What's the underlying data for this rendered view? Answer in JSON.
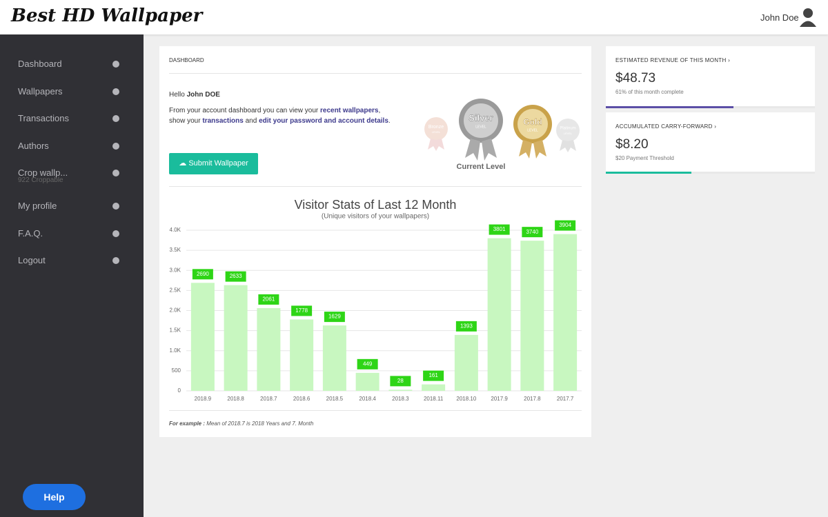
{
  "header": {
    "logo": "Best HD Wallpaper",
    "user": "John Doe"
  },
  "sidebar": {
    "items": [
      {
        "label": "Dashboard"
      },
      {
        "label": "Wallpapers"
      },
      {
        "label": "Transactions"
      },
      {
        "label": "Authors"
      },
      {
        "label": "Crop wallp...",
        "sublabel": "922 Croppable"
      },
      {
        "label": "My profile"
      },
      {
        "label": "F.A.Q."
      },
      {
        "label": "Logout"
      }
    ],
    "help": "Help"
  },
  "panel": {
    "title": "DASHBOARD",
    "greeting": "Hello",
    "name": "John DOE",
    "intro": [
      "From your account dashboard you can view your ",
      "recent wallpapers",
      ", show your ",
      "transactions",
      " and ",
      "edit your password and account details",
      "."
    ],
    "button": "Submit Wallpaper",
    "badges": [
      {
        "name": "Bronze",
        "sub": "LEVEL"
      },
      {
        "name": "Silver",
        "sub": "LEVEL"
      },
      {
        "name": "Gold",
        "sub": "LEVEL"
      },
      {
        "name": "Platinum",
        "sub": "LEVEL"
      }
    ],
    "current_level": "Current Level",
    "footnote_label": "For example :",
    "footnote": "Mean of 2018.7 is 2018 Years and 7. Month"
  },
  "cards": [
    {
      "title": "ESTIMATED REVENUE OF THIS MONTH",
      "value": "$48.73",
      "note": "61% of this month complete",
      "progress": 61,
      "color": "#5b4ea6"
    },
    {
      "title": "ACCUMULATED CARRY-FORWARD",
      "value": "$8.20",
      "note": "$20 Payment Threshold",
      "progress": 41,
      "color": "#1abc9c"
    }
  ],
  "chart_data": {
    "type": "bar",
    "title": "Visitor Stats of Last 12 Month",
    "subtitle": "(Unique visitors of your wallpapers)",
    "categories": [
      "2018.9",
      "2018.8",
      "2018.7",
      "2018.6",
      "2018.5",
      "2018.4",
      "2018.3",
      "2018.11",
      "2018.10",
      "2017.9",
      "2017.8",
      "2017.7"
    ],
    "values": [
      2690,
      2633,
      2061,
      1778,
      1629,
      449,
      28,
      161,
      1393,
      3801,
      3740,
      3904
    ],
    "color": "#c8f7c0",
    "label_color": "#2ed516",
    "ylim": [
      0,
      4000
    ],
    "yticks": [
      0,
      500,
      {
        "value": 1000,
        "label": "1.0K"
      },
      {
        "value": 1500,
        "label": "1.5K"
      },
      {
        "value": 2000,
        "label": "2.0K"
      },
      {
        "value": 2500,
        "label": "2.5K"
      },
      {
        "value": 3000,
        "label": "3.0K"
      },
      {
        "value": 3500,
        "label": "3.5K"
      },
      {
        "value": 4000,
        "label": "4.0K"
      }
    ],
    "grid": true
  }
}
